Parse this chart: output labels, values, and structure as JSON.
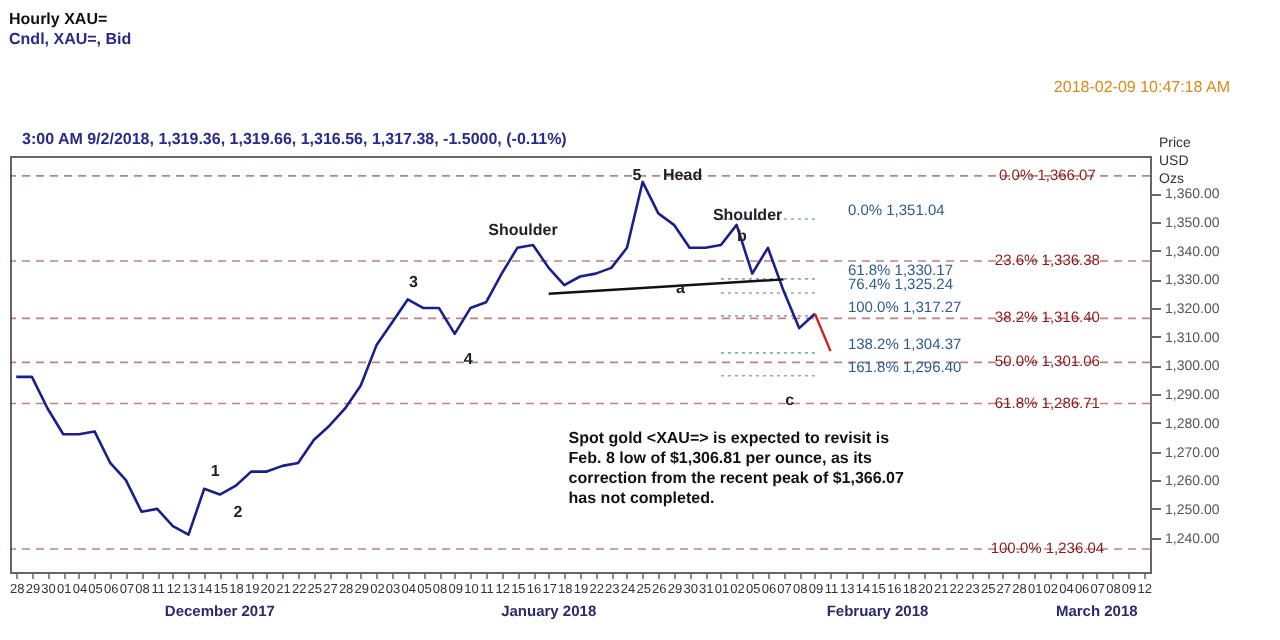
{
  "chart_data": {
    "type": "line",
    "title": "Hourly XAU=",
    "subtitle": "Cndl, XAU=, Bid",
    "ylabel": "Price USD Ozs",
    "categories": [
      "28",
      "29",
      "30",
      "01",
      "04",
      "05",
      "06",
      "07",
      "08",
      "11",
      "12",
      "13",
      "14",
      "15",
      "18",
      "19",
      "20",
      "21",
      "22",
      "25",
      "27",
      "28",
      "29",
      "02",
      "03",
      "04",
      "05",
      "08",
      "09",
      "10",
      "11",
      "12",
      "15",
      "16",
      "17",
      "18",
      "19",
      "22",
      "23",
      "24",
      "25",
      "26",
      "29",
      "30",
      "31",
      "01",
      "02",
      "05",
      "06",
      "07",
      "08",
      "09",
      "11",
      "13",
      "14",
      "15",
      "16",
      "18",
      "20",
      "21",
      "22",
      "23",
      "25",
      "27",
      "28",
      "01",
      "02",
      "04",
      "06",
      "07",
      "08",
      "09",
      "12"
    ],
    "series": [
      {
        "color": "#1c1f8a",
        "values": [
          1296,
          1296,
          1285,
          1276,
          1276,
          1277,
          1266,
          1260,
          1249,
          1250,
          1244,
          1241,
          1257,
          1255,
          1258,
          1263,
          1263,
          1265,
          1266,
          1274,
          1279,
          1285,
          1293,
          1307,
          1315,
          1323,
          1320,
          1320,
          1311,
          1320,
          1322,
          1332,
          1341,
          1342,
          1334,
          1328,
          1331,
          1332,
          1334,
          1341,
          1364,
          1353,
          1349,
          1341,
          1341,
          1342,
          1349,
          1332,
          1341,
          1326,
          1313,
          1318,
          null,
          null,
          null,
          null,
          null,
          null,
          null,
          null,
          null,
          null,
          null,
          null,
          null,
          null,
          null,
          null,
          null,
          null,
          null,
          null,
          null
        ]
      },
      {
        "color": "#111111",
        "values": [
          null,
          null,
          null,
          null,
          null,
          null,
          null,
          null,
          null,
          null,
          null,
          null,
          null,
          null,
          null,
          null,
          null,
          null,
          null,
          null,
          null,
          null,
          null,
          null,
          null,
          null,
          null,
          null,
          null,
          null,
          null,
          null,
          null,
          null,
          1325,
          null,
          null,
          null,
          null,
          null,
          null,
          null,
          null,
          null,
          null,
          null,
          null,
          null,
          null,
          1330,
          null,
          null,
          null,
          null,
          null,
          null,
          null,
          null,
          null,
          null,
          null,
          null,
          null,
          null,
          null,
          null,
          null,
          null,
          null,
          null,
          null,
          null,
          null
        ]
      },
      {
        "color": "#cc2222",
        "values": [
          null,
          null,
          null,
          null,
          null,
          null,
          null,
          null,
          null,
          null,
          null,
          null,
          null,
          null,
          null,
          null,
          null,
          null,
          null,
          null,
          null,
          null,
          null,
          null,
          null,
          null,
          null,
          null,
          null,
          null,
          null,
          null,
          null,
          null,
          null,
          null,
          null,
          null,
          null,
          null,
          null,
          null,
          null,
          null,
          null,
          null,
          null,
          null,
          null,
          null,
          null,
          1318,
          1305,
          null,
          null,
          null,
          null,
          null,
          null,
          null,
          null,
          null,
          null,
          null,
          null,
          null,
          null,
          null,
          null,
          null,
          null,
          null,
          null
        ]
      }
    ],
    "ylim": [
      1228,
      1373
    ],
    "yticks": [
      {
        "value": 1240,
        "label": "1,240.00"
      },
      {
        "value": 1250,
        "label": "1,250.00"
      },
      {
        "value": 1260,
        "label": "1,260.00"
      },
      {
        "value": 1270,
        "label": "1,270.00"
      },
      {
        "value": 1280,
        "label": "1,280.00"
      },
      {
        "value": 1290,
        "label": "1,290.00"
      },
      {
        "value": 1300,
        "label": "1,300.00"
      },
      {
        "value": 1310,
        "label": "1,310.00"
      },
      {
        "value": 1320,
        "label": "1,320.00"
      },
      {
        "value": 1330,
        "label": "1,330.00"
      },
      {
        "value": 1340,
        "label": "1,340.00"
      },
      {
        "value": 1350,
        "label": "1,350.00"
      },
      {
        "value": 1360,
        "label": "1,360.00"
      }
    ],
    "ref_lines": [
      {
        "axis": "y",
        "value": 1366.07,
        "label": "0.0% 1,366.07",
        "color": "#8b1a1a",
        "line_style": "dashed"
      },
      {
        "axis": "y",
        "value": 1336.38,
        "label": "23.6% 1,336.38",
        "color": "#8b1a1a",
        "line_style": "dashed"
      },
      {
        "axis": "y",
        "value": 1316.4,
        "label": "38.2% 1,316.40",
        "color": "#8b1a1a",
        "line_style": "dashed"
      },
      {
        "axis": "y",
        "value": 1301.06,
        "label": "50.0% 1,301.06",
        "color": "#8b1a1a",
        "line_style": "dashed"
      },
      {
        "axis": "y",
        "value": 1286.71,
        "label": "61.8% 1,286.71",
        "color": "#8b1a1a",
        "line_style": "dashed"
      },
      {
        "axis": "y",
        "value": 1236.04,
        "label": "100.0% 1,236.04",
        "color": "#8b1a1a",
        "line_style": "dashed"
      },
      {
        "axis": "y",
        "value": 1351.04,
        "label": "0.0% 1,351.04",
        "color": "#2d5b8a",
        "line_style": "dotted"
      },
      {
        "axis": "y",
        "value": 1330.17,
        "label": "61.8% 1,330.17",
        "color": "#2d5b8a",
        "line_style": "dotted"
      },
      {
        "axis": "y",
        "value": 1325.24,
        "label": "76.4% 1,325.24",
        "color": "#2d5b8a",
        "line_style": "dotted"
      },
      {
        "axis": "y",
        "value": 1317.27,
        "label": "100.0% 1,317.27",
        "color": "#2d5b8a",
        "line_style": "dotted"
      },
      {
        "axis": "y",
        "value": 1304.37,
        "label": "138.2% 1,304.37",
        "color": "#2d5b8a",
        "line_style": "dotted"
      },
      {
        "axis": "y",
        "value": 1296.4,
        "label": "161.8% 1,296.40",
        "color": "#2d5b8a",
        "line_style": "dotted"
      }
    ],
    "annotations": [
      "3:00 AM 9/2/2018, 1,319.36, 1,319.66, 1,316.56, 1,317.38, -1.5000, (-0.11%)",
      "2018-02-09 10:47:18 AM",
      "Spot gold <XAU=> is expected to revisit is Feb. 8 low of $1,306.81 per ounce, as its correction from the recent peak of $1,366.07 has not completed.",
      "December 2017",
      "January 2018",
      "February 2018",
      "March 2018",
      "1",
      "2",
      "3",
      "4",
      "5",
      "Head",
      "Shoulder",
      "Shoulder",
      "a",
      "b",
      "c"
    ],
    "grid": false
  }
}
